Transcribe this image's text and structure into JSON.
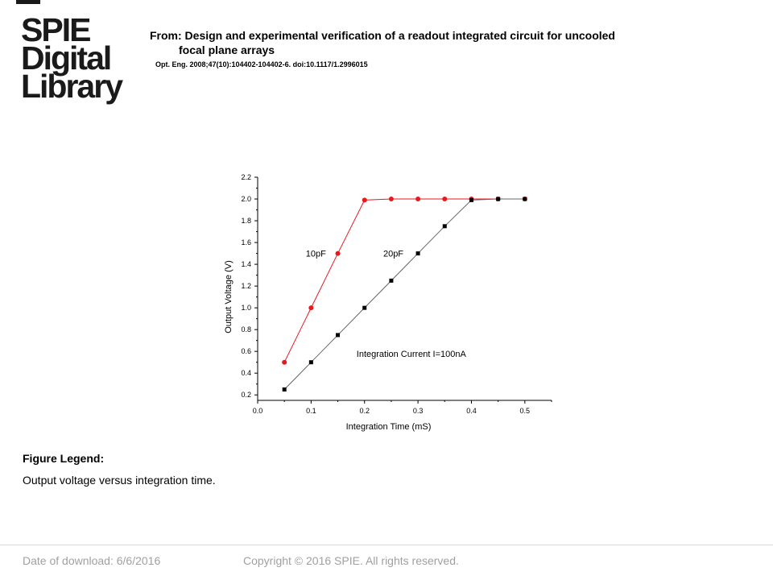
{
  "logo": {
    "line1": "SPIE",
    "line2": "Digital",
    "line3": "Library"
  },
  "header": {
    "title_line1": "From: Design and experimental verification of a readout integrated circuit for uncooled",
    "title_line2": "focal plane arrays",
    "citation": "Opt. Eng. 2008;47(10):104402-104402-6. doi:10.1117/1.2996015"
  },
  "chart_data": {
    "type": "scatter",
    "title": "",
    "xlabel": "Integration Time (mS)",
    "ylabel": "Output Voltage (V)",
    "xlim": [
      0.0,
      0.55
    ],
    "ylim": [
      0.15,
      2.2
    ],
    "xticks": [
      "0.0",
      "0.1",
      "0.2",
      "0.3",
      "0.4",
      "0.5"
    ],
    "yticks": [
      "0.2",
      "0.4",
      "0.6",
      "0.8",
      "1.0",
      "1.2",
      "1.4",
      "1.6",
      "1.8",
      "2.0",
      "2.2"
    ],
    "grid": false,
    "series": [
      {
        "name": "10pF",
        "color": "#e8191c",
        "marker": "circle",
        "x": [
          0.05,
          0.1,
          0.15,
          0.2,
          0.25,
          0.3,
          0.35,
          0.4,
          0.45,
          0.5
        ],
        "y": [
          0.5,
          1.0,
          1.5,
          1.99,
          2.0,
          2.0,
          2.0,
          2.0,
          2.0,
          2.0
        ]
      },
      {
        "name": "20pF",
        "color": "#000000",
        "marker": "square",
        "x": [
          0.05,
          0.1,
          0.15,
          0.2,
          0.25,
          0.3,
          0.35,
          0.4,
          0.45,
          0.5
        ],
        "y": [
          0.25,
          0.5,
          0.75,
          1.0,
          1.25,
          1.5,
          1.75,
          1.99,
          2.0,
          2.0
        ]
      }
    ],
    "annotations": [
      {
        "text": "10pF",
        "x": 0.09,
        "y": 1.47
      },
      {
        "text": "20pF",
        "x": 0.235,
        "y": 1.47
      },
      {
        "text": "Integration Current I=100nA",
        "x": 0.185,
        "y": 0.55
      }
    ]
  },
  "legend": {
    "heading": "Figure Legend:",
    "text": "Output voltage versus integration time."
  },
  "footer": {
    "date": "Date of download:  6/6/2016",
    "copyright": "Copyright © 2016 SPIE. All rights reserved."
  }
}
